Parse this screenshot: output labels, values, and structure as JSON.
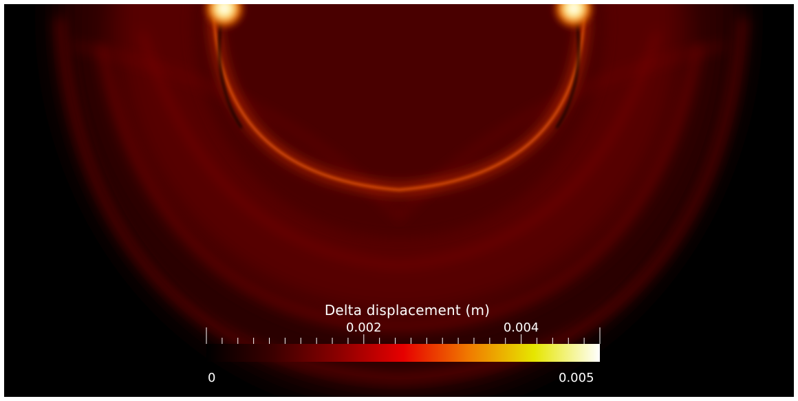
{
  "colorbar": {
    "title": "Delta displacement (m)",
    "min_label": "0",
    "max_label": "0.005",
    "tick_labels": [
      "0.002",
      "0.004"
    ],
    "range": [
      0,
      0.005
    ],
    "major_ticks": [
      0.002,
      0.004
    ],
    "minor_tick_step": 0.0002,
    "colormap": [
      "#000000",
      "#3a0000",
      "#8a0000",
      "#e60000",
      "#f07a00",
      "#e6e600",
      "#ffffff"
    ]
  },
  "background_color": "#000000"
}
